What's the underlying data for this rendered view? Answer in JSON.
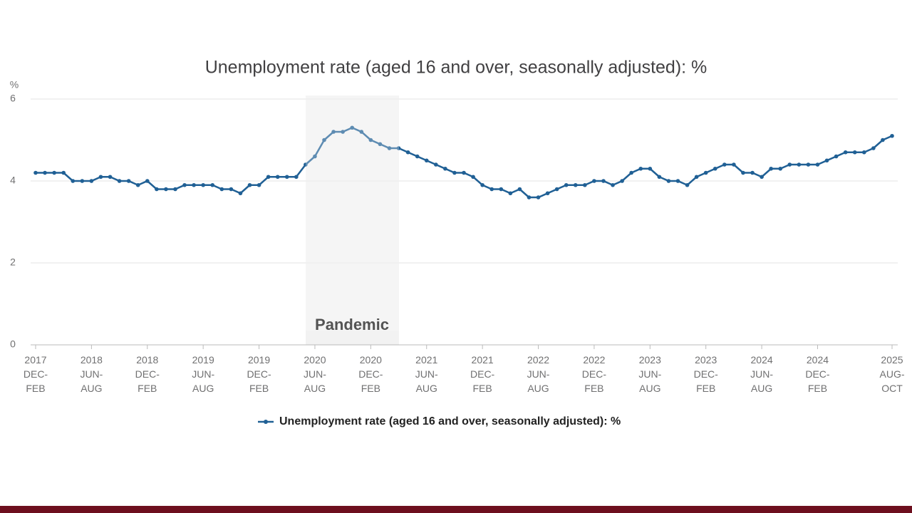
{
  "chart_data": {
    "type": "line",
    "title": "Unemployment rate (aged 16 and over, seasonally adjusted): %",
    "y_unit_label": "%",
    "annotations": [
      "Pandemic"
    ],
    "categories": [
      [
        "2017",
        "DEC-",
        "FEB"
      ],
      null,
      null,
      null,
      null,
      null,
      [
        "2018",
        "JUN-",
        "AUG"
      ],
      null,
      null,
      null,
      null,
      null,
      [
        "2018",
        "DEC-",
        "FEB"
      ],
      null,
      null,
      null,
      null,
      null,
      [
        "2019",
        "JUN-",
        "AUG"
      ],
      null,
      null,
      null,
      null,
      null,
      [
        "2019",
        "DEC-",
        "FEB"
      ],
      null,
      null,
      null,
      null,
      null,
      [
        "2020",
        "JUN-",
        "AUG"
      ],
      null,
      null,
      null,
      null,
      null,
      [
        "2020",
        "DEC-",
        "FEB"
      ],
      null,
      null,
      null,
      null,
      null,
      [
        "2021",
        "JUN-",
        "AUG"
      ],
      null,
      null,
      null,
      null,
      null,
      [
        "2021",
        "DEC-",
        "FEB"
      ],
      null,
      null,
      null,
      null,
      null,
      [
        "2022",
        "JUN-",
        "AUG"
      ],
      null,
      null,
      null,
      null,
      null,
      [
        "2022",
        "DEC-",
        "FEB"
      ],
      null,
      null,
      null,
      null,
      null,
      [
        "2023",
        "JUN-",
        "AUG"
      ],
      null,
      null,
      null,
      null,
      null,
      [
        "2023",
        "DEC-",
        "FEB"
      ],
      null,
      null,
      null,
      null,
      null,
      [
        "2024",
        "JUN-",
        "AUG"
      ],
      null,
      null,
      null,
      null,
      null,
      [
        "2024",
        "DEC-",
        "FEB"
      ],
      null,
      null,
      null,
      null,
      null,
      null,
      null,
      [
        "2025",
        "AUG-",
        "OCT"
      ]
    ],
    "series": [
      {
        "name": "Unemployment rate (aged 16 and over, seasonally adjusted): %",
        "color": "#206095",
        "values": [
          4.2,
          4.2,
          4.2,
          4.2,
          4.0,
          4.0,
          4.0,
          4.1,
          4.1,
          4.0,
          4.0,
          3.9,
          4.0,
          3.8,
          3.8,
          3.8,
          3.9,
          3.9,
          3.9,
          3.9,
          3.8,
          3.8,
          3.7,
          3.9,
          3.9,
          4.1,
          4.1,
          4.1,
          4.1,
          4.4,
          4.6,
          5.0,
          5.2,
          5.2,
          5.3,
          5.2,
          5.0,
          4.9,
          4.8,
          4.8,
          4.7,
          4.6,
          4.5,
          4.4,
          4.3,
          4.2,
          4.2,
          4.1,
          3.9,
          3.8,
          3.8,
          3.7,
          3.8,
          3.6,
          3.6,
          3.7,
          3.8,
          3.9,
          3.9,
          3.9,
          4.0,
          4.0,
          3.9,
          4.0,
          4.2,
          4.3,
          4.3,
          4.1,
          4.0,
          4.0,
          3.9,
          4.1,
          4.2,
          4.3,
          4.4,
          4.4,
          4.2,
          4.2,
          4.1,
          4.3,
          4.3,
          4.4,
          4.4,
          4.4,
          4.4,
          4.5,
          4.6,
          4.7,
          4.7,
          4.7,
          4.8,
          5.0,
          5.1
        ]
      }
    ],
    "ylim": [
      0,
      6
    ],
    "yticks": [
      0,
      2,
      4,
      6
    ],
    "grid": true,
    "legend": "bottom"
  }
}
